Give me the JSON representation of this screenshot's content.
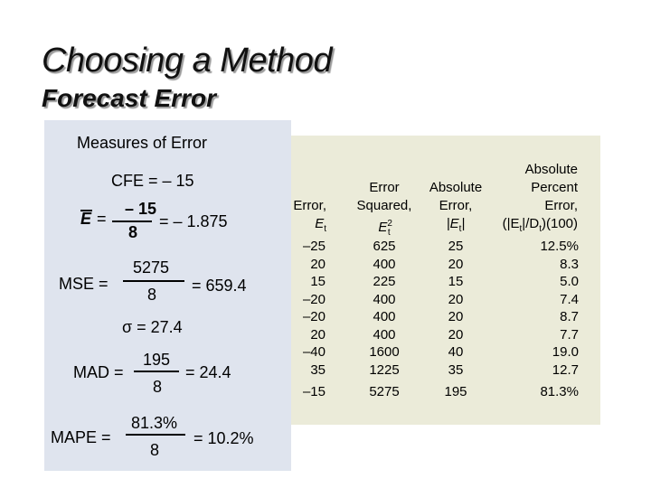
{
  "slide": {
    "title": "Choosing a Method",
    "subtitle": "Forecast Error"
  },
  "measures": {
    "heading": "Measures of Error",
    "cfe": "CFE = – 15",
    "ebar": {
      "symbol": "E",
      "equals": "=",
      "numerator": "– 15",
      "denominator": "8",
      "result": "= – 1.875"
    },
    "mse": {
      "label": "MSE =",
      "numerator": "5275",
      "denominator": "8",
      "result": "= 659.4"
    },
    "sigma": "σ = 27.4",
    "mad": {
      "label": "MAD =",
      "numerator": "195",
      "denominator": "8",
      "result": "= 24.4"
    },
    "mape": {
      "label": "MAPE =",
      "numerator": "81.3%",
      "denominator": "8",
      "result": "= 10.2%"
    }
  },
  "table": {
    "headers": {
      "error": {
        "line1": "Error,",
        "sym": "E",
        "sub": "t"
      },
      "squared": {
        "line1": "Error",
        "line2": "Squared,",
        "sym": "E",
        "sub": "t",
        "sup": "2"
      },
      "absolute": {
        "line1": "Absolute",
        "line2": "Error,",
        "sym": "|E",
        "sub": "t",
        "close": "|"
      },
      "percent": {
        "line1": "Absolute",
        "line2": "Percent",
        "line3": "Error,",
        "sym": "(|E",
        "sub1": "t",
        "mid": "|/D",
        "sub2": "t",
        "close": ")(100)"
      }
    },
    "rows": [
      {
        "error": "–25",
        "squared": "625",
        "absolute": "25",
        "percent": "12.5%"
      },
      {
        "error": "20",
        "squared": "400",
        "absolute": "20",
        "percent": "8.3"
      },
      {
        "error": "15",
        "squared": "225",
        "absolute": "15",
        "percent": "5.0"
      },
      {
        "error": "–20",
        "squared": "400",
        "absolute": "20",
        "percent": "7.4"
      },
      {
        "error": "–20",
        "squared": "400",
        "absolute": "20",
        "percent": "8.7"
      },
      {
        "error": "20",
        "squared": "400",
        "absolute": "20",
        "percent": "7.7"
      },
      {
        "error": "–40",
        "squared": "1600",
        "absolute": "40",
        "percent": "19.0"
      },
      {
        "error": "35",
        "squared": "1225",
        "absolute": "35",
        "percent": "12.7"
      }
    ],
    "totals": {
      "error": "–15",
      "squared": "5275",
      "absolute": "195",
      "percent": "81.3%"
    }
  }
}
